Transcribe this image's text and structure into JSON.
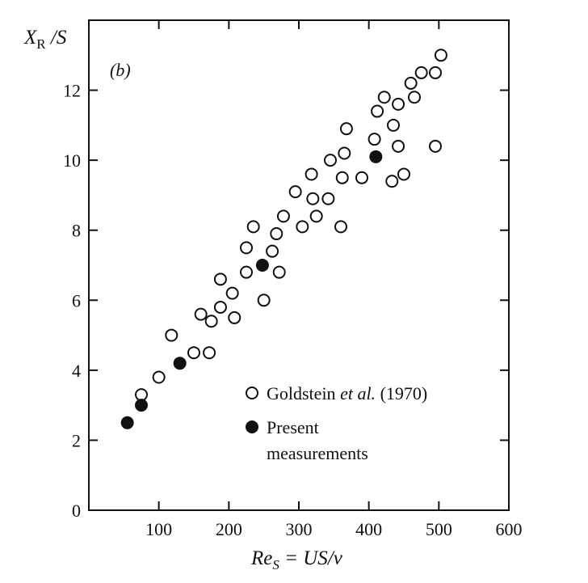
{
  "chart_data": {
    "type": "scatter",
    "panel_label": "(b)",
    "ylabel": {
      "main": "X",
      "sub": "R",
      "tail": " /S"
    },
    "xlabel": {
      "main": "Re",
      "sub": "S",
      "tail": " = US/ν"
    },
    "xlim": [
      0,
      600
    ],
    "ylim": [
      0,
      14
    ],
    "x_ticks": [
      100,
      200,
      300,
      400,
      500,
      600
    ],
    "x_tick_labels": [
      "100",
      "200",
      "300",
      "400",
      "500",
      "600"
    ],
    "y_ticks": [
      0,
      2,
      4,
      6,
      8,
      10,
      12
    ],
    "y_tick_labels": [
      "0",
      "2",
      "4",
      "6",
      "8",
      "10",
      "12"
    ],
    "grid": false,
    "legend_position": "bottom-right",
    "legend": [
      {
        "marker": "open-circle",
        "text_parts": [
          "Goldstein ",
          "et al.",
          " (1970)"
        ]
      },
      {
        "marker": "filled-circle",
        "text_lines": [
          "Present",
          "measurements"
        ]
      }
    ],
    "series": [
      {
        "name": "Goldstein et al. (1970)",
        "marker": "open-circle",
        "points": [
          [
            75,
            3.3
          ],
          [
            100,
            3.8
          ],
          [
            118,
            5.0
          ],
          [
            150,
            4.5
          ],
          [
            160,
            5.6
          ],
          [
            172,
            4.5
          ],
          [
            175,
            5.4
          ],
          [
            188,
            6.6
          ],
          [
            188,
            5.8
          ],
          [
            205,
            6.2
          ],
          [
            208,
            5.5
          ],
          [
            225,
            6.8
          ],
          [
            225,
            7.5
          ],
          [
            235,
            8.1
          ],
          [
            250,
            6.0
          ],
          [
            262,
            7.4
          ],
          [
            268,
            7.9
          ],
          [
            272,
            6.8
          ],
          [
            278,
            8.4
          ],
          [
            295,
            9.1
          ],
          [
            305,
            8.1
          ],
          [
            318,
            9.6
          ],
          [
            320,
            8.9
          ],
          [
            325,
            8.4
          ],
          [
            342,
            8.9
          ],
          [
            345,
            10.0
          ],
          [
            360,
            8.1
          ],
          [
            362,
            9.5
          ],
          [
            365,
            10.2
          ],
          [
            368,
            10.9
          ],
          [
            390,
            9.5
          ],
          [
            408,
            10.6
          ],
          [
            412,
            11.4
          ],
          [
            422,
            11.8
          ],
          [
            433,
            9.4
          ],
          [
            435,
            11.0
          ],
          [
            442,
            11.6
          ],
          [
            442,
            10.4
          ],
          [
            450,
            9.6
          ],
          [
            460,
            12.2
          ],
          [
            465,
            11.8
          ],
          [
            475,
            12.5
          ],
          [
            495,
            10.4
          ],
          [
            495,
            12.5
          ],
          [
            503,
            13.0
          ]
        ]
      },
      {
        "name": "Present measurements",
        "marker": "filled-circle",
        "points": [
          [
            55,
            2.5
          ],
          [
            75,
            3.0
          ],
          [
            130,
            4.2
          ],
          [
            248,
            7.0
          ],
          [
            410,
            10.1
          ]
        ]
      }
    ]
  }
}
